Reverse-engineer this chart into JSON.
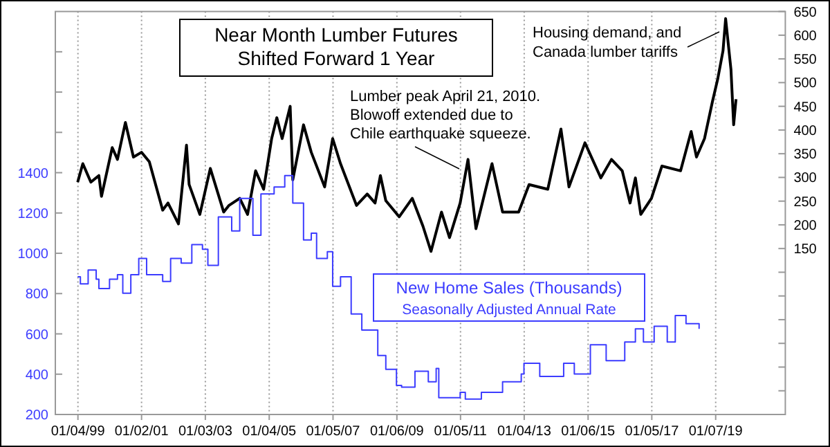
{
  "chart_data": {
    "type": "line",
    "title": "Near Month Lumber Futures Shifted Forward 1 Year",
    "annotations": [
      "Lumber peak April 21, 2010. Blowoff extended due to Chile earthquake squeeze.",
      "Housing demand, and Canada lumber tariffs",
      "Seasonally Adjusted Annual Rate"
    ],
    "xlim": [
      "1998-04-20",
      "2021-03-15"
    ],
    "xticks": [
      {
        "value": "1999-01-04",
        "label": "01/04/99"
      },
      {
        "value": "2001-01-02",
        "label": "01/02/01"
      },
      {
        "value": "2003-01-03",
        "label": "01/03/03"
      },
      {
        "value": "2005-01-04",
        "label": "01/04/05"
      },
      {
        "value": "2007-01-05",
        "label": "01/05/07"
      },
      {
        "value": "2009-01-06",
        "label": "01/06/09"
      },
      {
        "value": "2011-01-05",
        "label": "01/05/11"
      },
      {
        "value": "2013-01-04",
        "label": "01/04/13"
      },
      {
        "value": "2015-01-06",
        "label": "01/06/15"
      },
      {
        "value": "2017-01-05",
        "label": "01/05/17"
      },
      {
        "value": "2019-01-07",
        "label": "01/07/19"
      }
    ],
    "ylim": [
      200,
      2200
    ],
    "yticks": [
      200,
      400,
      600,
      800,
      1000,
      1200,
      1400,
      {
        "value": 1600,
        "label": null
      },
      {
        "value": 1800,
        "label": null
      },
      {
        "value": 2000,
        "label": null
      }
    ],
    "y2lim": [
      -200,
      650
    ],
    "y2ticks": [
      {
        "value": -150,
        "label": null
      },
      {
        "value": -100,
        "label": null
      },
      {
        "value": -50,
        "label": null
      },
      {
        "value": 0,
        "label": null
      },
      {
        "value": 50,
        "label": null
      },
      {
        "value": 100,
        "label": null
      },
      150,
      200,
      250,
      300,
      350,
      400,
      450,
      500,
      550,
      600,
      650
    ],
    "grid": "x",
    "legend": "bottom",
    "series": [
      {
        "axis": "y2",
        "color": "#000000",
        "x": [
          "1999-01",
          "1999-03",
          "1999-06",
          "1999-09",
          "1999-10",
          "2000-02",
          "2000-04",
          "2000-07",
          "2000-10",
          "2001-01",
          "2001-04",
          "2001-09",
          "2001-11",
          "2002-03",
          "2002-06",
          "2002-07",
          "2002-11",
          "2003-03",
          "2003-08",
          "2003-10",
          "2004-02",
          "2004-05",
          "2004-08",
          "2004-11",
          "2005-02",
          "2005-04",
          "2005-06",
          "2005-09",
          "2005-10",
          "2006-02",
          "2006-05",
          "2006-10",
          "2007-01",
          "2007-04",
          "2007-10",
          "2008-02",
          "2008-05",
          "2008-07",
          "2008-09",
          "2009-02",
          "2009-07",
          "2009-11",
          "2010-02",
          "2010-06",
          "2010-09",
          "2011-01",
          "2011-04",
          "2011-07",
          "2012-01",
          "2012-05",
          "2012-11",
          "2013-03",
          "2013-10",
          "2014-03",
          "2014-06",
          "2014-12",
          "2015-06",
          "2015-10",
          "2016-02",
          "2016-05",
          "2016-07",
          "2016-09",
          "2017-01",
          "2017-05",
          "2017-12",
          "2018-04",
          "2018-06",
          "2018-09",
          "2018-12",
          "2019-02",
          "2019-04",
          "2019-05",
          "2019-07",
          "2019-08-01",
          "2019-08-28"
        ],
        "values": [
          290,
          329,
          290,
          304,
          260,
          363,
          338,
          416,
          343,
          353,
          333,
          231,
          246,
          202,
          368,
          285,
          222,
          319,
          227,
          241,
          256,
          222,
          314,
          275,
          382,
          426,
          382,
          450,
          295,
          411,
          353,
          280,
          382,
          329,
          241,
          265,
          246,
          304,
          251,
          217,
          256,
          197,
          144,
          227,
          173,
          246,
          338,
          192,
          329,
          227,
          227,
          285,
          275,
          402,
          280,
          373,
          299,
          338,
          314,
          246,
          299,
          222,
          256,
          324,
          314,
          397,
          343,
          382,
          460,
          509,
          567,
          635,
          528,
          411,
          465
        ]
      },
      {
        "type": "step",
        "name": "New Home Sales (Thousands)",
        "color": "#3c3cff",
        "x": [
          "1999-01",
          "1999-02",
          "1999-05",
          "1999-08",
          "1999-09",
          "2000-01",
          "2000-04",
          "2000-06",
          "2000-09",
          "2000-12",
          "2001-03",
          "2001-09",
          "2001-12",
          "2002-04",
          "2002-08",
          "2002-12",
          "2003-02",
          "2003-06",
          "2003-11",
          "2004-02",
          "2004-07",
          "2004-10",
          "2005-03",
          "2005-07",
          "2005-10",
          "2006-02",
          "2006-05",
          "2006-07",
          "2006-11",
          "2007-01",
          "2007-04",
          "2007-08",
          "2007-12",
          "2008-06",
          "2008-09",
          "2009-01",
          "2009-03",
          "2009-08",
          "2010-01",
          "2010-04",
          "2010-05",
          "2011-01",
          "2011-03",
          "2011-09",
          "2012-05",
          "2012-12",
          "2013-01",
          "2013-07",
          "2014-04",
          "2014-08",
          "2015-02",
          "2015-08",
          "2016-03",
          "2016-07",
          "2016-10",
          "2017-02",
          "2017-07",
          "2017-10",
          "2018-02",
          "2018-07"
        ],
        "values": [
          883,
          848,
          917,
          871,
          825,
          871,
          894,
          802,
          894,
          974,
          894,
          860,
          974,
          951,
          1043,
          1020,
          940,
          1180,
          1111,
          1272,
          1089,
          1295,
          1329,
          1386,
          1249,
          1066,
          1100,
          974,
          1008,
          836,
          883,
          699,
          619,
          493,
          424,
          344,
          336,
          415,
          362,
          428,
          283,
          310,
          276,
          310,
          362,
          401,
          454,
          389,
          454,
          401,
          546,
          467,
          560,
          625,
          560,
          638,
          560,
          691,
          651,
          625
        ]
      }
    ]
  }
}
